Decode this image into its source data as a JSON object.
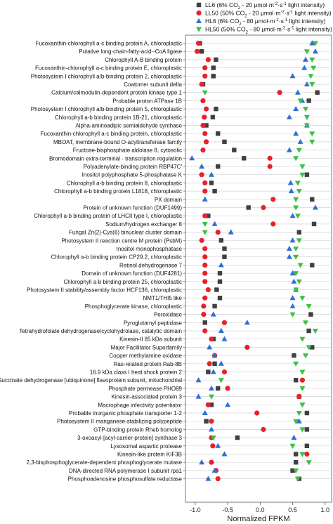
{
  "chart_data": {
    "type": "scatter",
    "xlabel": "Normalized FPKM",
    "xlim": [
      -1.15,
      1.1
    ],
    "xticks": [
      -1.0,
      -0.5,
      0.0,
      0.5,
      1.0
    ],
    "xtick_labels": [
      "-1.0",
      "-0.5",
      "0.0",
      "0.5",
      "1.0"
    ],
    "grid": "horizontal",
    "legend_position": "top-right",
    "categories": [
      "Fucoxanthin-chlorophyll a-c binding protein A, chloroplastic",
      "Putative long-chain-fatty-acid--CoA ligase",
      "Chlorophyll A-B binding protein",
      "Fucoxanthin-chlorophyll a-c binding protein E, chloroplastic",
      "Photosystem I chlorophyll a/b-binding protein 2, chloroplastic",
      "Coatomer subunit delta",
      "Calcium/calmodulin-dependent protein kinase type 1",
      "Probable proton ATPase 1B",
      "Photosystem I chlorophyll a/b-binding protein 5, chloroplastic",
      "Chlorophyll a-b binding protein 1B-21, chloroplastic",
      "Alpha-aminoadipic semialdehyde synthase",
      "Fucoxanthin-chlorophyll a-c binding protein, chloroplastic",
      "MBOAT, membrane-bound O-acyltransferase family",
      "Fructose-bisphosphate aldolase 8, cytosolic",
      "Bromodomain extra-terminal - transcription regulation",
      "Polyadenylate-binding protein RBP47C'",
      "Inositol polyphosphate 5-phosphatase K",
      "Chlorophyll a-b binding protein 8, chloroplastic",
      "Chlorophyll a-b binding protein L1818, chloroplastic",
      "PX domain",
      "Protein of unknown function (DUF1499)",
      "Chlorophyll a-b binding protein of LHCII type I, chloroplastic",
      "Sodium/hydrogen exchanger 8",
      "Fungal Zn(2)-Cys(6) binuclear cluster domain",
      "Photosystem II reaction centre M protein (PsbM)",
      "Inositol monophosphatase",
      "Chlorophyll a-b binding protein CP29.2, chloroplastic",
      "Retinol dehydrogenase 7",
      "Domain of unknown function (DUF4281)",
      "Chlorophyll a-b binding protein 25, chloroplastic",
      "Photosystem II stability/assembly factor HCF136, chloroplastic",
      "NMT1/THI5 like",
      "Phosphoglycerate kinase, chloroplastic",
      "Peroxidase",
      "Pyroglutamyl peptidase",
      "Tetrahydrofolate dehydrogenase/cyclohydrolase, catalytic domain",
      "Kinesin-II 85 kDa subunit",
      "Major Facilitator Superfamily",
      "Copper methylamine oxidase",
      "Ras-related protein Rab-8B",
      "16.9 kDa class I heat shock protein 2",
      "Succinate dehydrogenase [ubiquinone] flavoprotein subunit, mitochondrial",
      "Phosphate permease PHO89",
      "Kinesin-associated protein 3",
      "Macrophage infectivity potentiator",
      "Probable inorganic phosphate transporter 1-2",
      "Photosystem II manganese-stabilizing polypeptide",
      "GTP-binding protein Rheb homolog",
      "3-oxoacyl-[acyl-carrier-protein] synthase 3",
      "Lysosomal aspartic protease",
      "Kinesin-like protein KIF3B",
      "2,3-bisphosphoglycerate-dependent phosphoglycerate mutase",
      "DNA-directed RNA polymerase I subunit rpa1",
      "Phosphoadenosine phosphosulfate reductase"
    ],
    "series": [
      {
        "name_parts": [
          "LL6 (6% CO",
          "2",
          " - 20 μmol·m",
          "-2",
          "·s",
          "-1",
          " light intensity)"
        ],
        "marker": "square",
        "color": "#404040",
        "values": [
          -0.93,
          -0.9,
          -0.68,
          -0.72,
          -0.72,
          -0.88,
          0.88,
          0.75,
          -0.68,
          -0.73,
          -0.83,
          -0.65,
          -0.55,
          -0.4,
          -0.25,
          -0.65,
          0.72,
          -0.75,
          -0.7,
          0.8,
          -0.18,
          -0.8,
          0.83,
          0.6,
          -0.6,
          -0.55,
          -0.55,
          0.8,
          -0.62,
          -0.62,
          -0.67,
          -0.62,
          -0.7,
          0.78,
          -0.85,
          0.75,
          -0.72,
          0.8,
          0.52,
          -0.7,
          -0.8,
          0.55,
          -0.65,
          0.6,
          -0.75,
          0.72,
          -0.83,
          0.72,
          -0.35,
          0.72,
          0.55,
          0.55,
          0.5,
          0.6
        ]
      },
      {
        "name_parts": [
          "LL50 (50% CO",
          "2",
          " - 20 μmol·m",
          "-2",
          "·s",
          "-1",
          " light intensity)"
        ],
        "marker": "circle",
        "color": "#e8212a",
        "values": [
          -0.95,
          -0.97,
          -0.8,
          -0.85,
          -0.85,
          -0.9,
          0.3,
          -0.88,
          -0.83,
          -0.86,
          -0.88,
          -0.85,
          -0.83,
          -0.88,
          0.15,
          0.15,
          -0.9,
          -0.85,
          -0.85,
          0.2,
          0.05,
          -0.85,
          0.2,
          -0.65,
          -0.9,
          -0.85,
          -0.85,
          -0.85,
          -0.85,
          -0.85,
          -0.8,
          -0.85,
          -0.87,
          -0.87,
          -0.55,
          -0.85,
          -0.75,
          -0.2,
          -0.7,
          -0.78,
          -0.55,
          0.65,
          -0.5,
          0.6,
          -0.8,
          -0.05,
          -0.75,
          0.05,
          -0.75,
          -0.73,
          0.72,
          -0.75,
          -0.68,
          -0.65
        ]
      },
      {
        "name_parts": [
          "HL6 (6% CO",
          "2",
          " - 80 μmol·m",
          "-2",
          "·s",
          "-1",
          " light intensity)"
        ],
        "marker": "triangle-up",
        "color": "#2f6fd6",
        "values": [
          0.8,
          0.85,
          0.7,
          0.68,
          0.5,
          0.72,
          0.58,
          0.65,
          0.55,
          0.45,
          0.72,
          0.55,
          0.62,
          0.45,
          -1.05,
          -0.9,
          -0.75,
          0.47,
          0.48,
          -0.85,
          0.85,
          0.5,
          -0.7,
          -0.45,
          0.5,
          0.45,
          0.45,
          -0.6,
          0.5,
          0.52,
          0.55,
          0.5,
          0.5,
          -0.72,
          -0.2,
          -0.6,
          -0.55,
          -0.78,
          -0.7,
          -0.6,
          -0.72,
          -0.95,
          -0.75,
          -0.95,
          -0.5,
          -0.85,
          0.6,
          -0.75,
          0.52,
          -0.65,
          -0.55,
          -0.9,
          -0.7,
          -0.8
        ]
      },
      {
        "name_parts": [
          "HL50 (50% CO",
          "2",
          " - 80 μmol·m",
          "-2",
          "·s",
          "-1",
          " light intensity)"
        ],
        "marker": "triangle-down",
        "color": "#3cc043",
        "values": [
          0.85,
          0.72,
          0.8,
          0.82,
          0.78,
          0.8,
          -0.85,
          0.62,
          0.7,
          0.72,
          0.72,
          0.8,
          0.8,
          0.6,
          0.55,
          0.65,
          0.65,
          0.58,
          0.6,
          0.55,
          0.55,
          0.58,
          -0.85,
          -0.85,
          0.6,
          0.55,
          0.55,
          0.62,
          0.55,
          0.6,
          0.55,
          0.65,
          0.75,
          0.5,
          0.7,
          0.85,
          0.65,
          0.75,
          0.7,
          0.55,
          0.65,
          -0.6,
          0.65,
          -0.75,
          0.65,
          0.6,
          0.55,
          0.65,
          -0.72,
          0.5,
          0.65,
          0.75,
          0.55,
          0.58
        ]
      }
    ]
  }
}
